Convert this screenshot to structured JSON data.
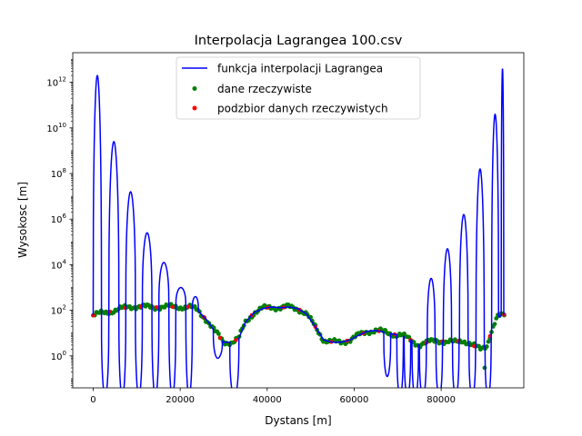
{
  "chart_data": {
    "type": "line",
    "title": "Interpolacja Lagrangea 100.csv",
    "xlabel": "Dystans [m]",
    "ylabel": "Wysokosc [m]",
    "xlim": [
      -4700,
      99000
    ],
    "ylim_exp": [
      -1.4,
      13.3
    ],
    "y_scale": "log",
    "grid": false,
    "legend_position": "top-center",
    "x_ticks": [
      {
        "value": 0,
        "label": "0"
      },
      {
        "value": 20000,
        "label": "20000"
      },
      {
        "value": 40000,
        "label": "40000"
      },
      {
        "value": 60000,
        "label": "60000"
      },
      {
        "value": 80000,
        "label": "80000"
      }
    ],
    "y_ticks": [
      {
        "exp": 0,
        "base": "10",
        "power": "0"
      },
      {
        "exp": 2,
        "base": "10",
        "power": "2"
      },
      {
        "exp": 4,
        "base": "10",
        "power": "4"
      },
      {
        "exp": 6,
        "base": "10",
        "power": "6"
      },
      {
        "exp": 8,
        "base": "10",
        "power": "8"
      },
      {
        "exp": 10,
        "base": "10",
        "power": "10"
      },
      {
        "exp": 12,
        "base": "10",
        "power": "12"
      }
    ],
    "series": [
      {
        "name": "funkcja interpolacji Lagrangea",
        "kind": "line",
        "color": "#0000ff",
        "lobes": [
          {
            "a": 0,
            "b": 1900,
            "peak_exp": 12.3
          },
          {
            "a": 3600,
            "b": 5900,
            "peak_exp": 9.4
          },
          {
            "a": 7500,
            "b": 9700,
            "peak_exp": 7.2
          },
          {
            "a": 11300,
            "b": 13500,
            "peak_exp": 5.4
          },
          {
            "a": 15100,
            "b": 17400,
            "peak_exp": 4.1
          },
          {
            "a": 19000,
            "b": 21300,
            "peak_exp": 3.0
          },
          {
            "a": 22800,
            "b": 24200,
            "peak_exp": 2.6
          },
          {
            "a": 76800,
            "b": 78600,
            "peak_exp": 3.4
          },
          {
            "a": 80500,
            "b": 82400,
            "peak_exp": 4.7
          },
          {
            "a": 84200,
            "b": 86200,
            "peak_exp": 6.2
          },
          {
            "a": 88000,
            "b": 89900,
            "peak_exp": 8.2
          },
          {
            "a": 91600,
            "b": 93200,
            "peak_exp": 10.6
          },
          {
            "a": 93800,
            "b": 94400,
            "peak_exp": 12.6
          }
        ],
        "dips": [
          {
            "a": 1900,
            "b": 3600,
            "min_exp": -1.8
          },
          {
            "a": 5900,
            "b": 7500,
            "min_exp": -1.8
          },
          {
            "a": 9700,
            "b": 11300,
            "min_exp": -1.8
          },
          {
            "a": 13500,
            "b": 15100,
            "min_exp": -1.8
          },
          {
            "a": 17400,
            "b": 19000,
            "min_exp": -1.8
          },
          {
            "a": 21300,
            "b": 22800,
            "min_exp": -1.8
          },
          {
            "a": 27600,
            "b": 29700,
            "min_exp": -0.1
          },
          {
            "a": 31400,
            "b": 33500,
            "min_exp": -1.8
          },
          {
            "a": 66800,
            "b": 68400,
            "min_exp": -0.9
          },
          {
            "a": 69800,
            "b": 71300,
            "min_exp": -1.8
          },
          {
            "a": 71500,
            "b": 73000,
            "min_exp": -1.8
          },
          {
            "a": 73300,
            "b": 74800,
            "min_exp": -1.8
          },
          {
            "a": 75000,
            "b": 76600,
            "min_exp": -1.8
          },
          {
            "a": 78800,
            "b": 80300,
            "min_exp": -1.8
          },
          {
            "a": 82600,
            "b": 84100,
            "min_exp": -1.8
          },
          {
            "a": 86400,
            "b": 87900,
            "min_exp": -1.8
          },
          {
            "a": 90100,
            "b": 91500,
            "min_exp": -1.8
          }
        ]
      },
      {
        "name": "dane rzeczywiste",
        "kind": "scatter",
        "color": "#008000"
      },
      {
        "name": "podzbior danych rzeczywistych",
        "kind": "scatter",
        "color": "#ff0000"
      }
    ],
    "terrain_profile": [
      [
        0,
        60
      ],
      [
        2000,
        75
      ],
      [
        4000,
        90
      ],
      [
        6000,
        110
      ],
      [
        8000,
        140
      ],
      [
        10000,
        150
      ],
      [
        12000,
        140
      ],
      [
        14000,
        135
      ],
      [
        16000,
        145
      ],
      [
        18000,
        140
      ],
      [
        20000,
        140
      ],
      [
        22000,
        145
      ],
      [
        24000,
        100
      ],
      [
        26000,
        40
      ],
      [
        28000,
        12
      ],
      [
        30000,
        4
      ],
      [
        32000,
        4
      ],
      [
        33500,
        6
      ],
      [
        35000,
        30
      ],
      [
        37000,
        80
      ],
      [
        39000,
        120
      ],
      [
        41000,
        140
      ],
      [
        43000,
        130
      ],
      [
        45000,
        140
      ],
      [
        47000,
        120
      ],
      [
        49000,
        70
      ],
      [
        51000,
        20
      ],
      [
        53000,
        5
      ],
      [
        55000,
        4
      ],
      [
        57000,
        4
      ],
      [
        59000,
        5
      ],
      [
        61000,
        8
      ],
      [
        63000,
        12
      ],
      [
        65000,
        13
      ],
      [
        67000,
        11
      ],
      [
        69000,
        9
      ],
      [
        71000,
        8
      ],
      [
        73000,
        5
      ],
      [
        75000,
        3
      ],
      [
        77000,
        4
      ],
      [
        79000,
        5
      ],
      [
        81000,
        4
      ],
      [
        83000,
        4
      ],
      [
        85000,
        5
      ],
      [
        87000,
        3
      ],
      [
        89000,
        2
      ],
      [
        90500,
        3
      ],
      [
        92000,
        20
      ],
      [
        93000,
        50
      ],
      [
        94500,
        65
      ]
    ],
    "sample_count": 260,
    "subset_step": 10
  }
}
